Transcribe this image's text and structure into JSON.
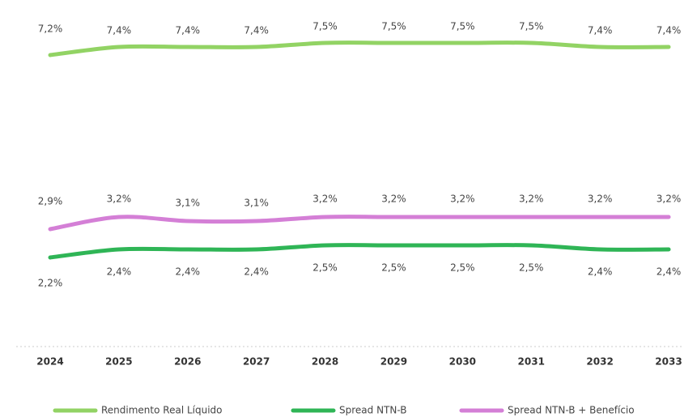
{
  "chart_data": {
    "type": "line",
    "categories": [
      "2024",
      "2025",
      "2026",
      "2027",
      "2028",
      "2029",
      "2030",
      "2031",
      "2032",
      "2033"
    ],
    "series": [
      {
        "name": "Rendimento Real Líquido",
        "color": "#92d364",
        "values": [
          7.2,
          7.4,
          7.4,
          7.4,
          7.5,
          7.5,
          7.5,
          7.5,
          7.4,
          7.4
        ],
        "value_labels": [
          "7,2%",
          "7,4%",
          "7,4%",
          "7,4%",
          "7,5%",
          "7,5%",
          "7,5%",
          "7,5%",
          "7,4%",
          "7,4%"
        ]
      },
      {
        "name": "Spread NTN-B",
        "color": "#2fb556",
        "values": [
          2.2,
          2.4,
          2.4,
          2.4,
          2.5,
          2.5,
          2.5,
          2.5,
          2.4,
          2.4
        ],
        "value_labels": [
          "2,2%",
          "2,4%",
          "2,4%",
          "2,4%",
          "2,5%",
          "2,5%",
          "2,5%",
          "2,5%",
          "2,4%",
          "2,4%"
        ]
      },
      {
        "name": "Spread NTN-B + Benefício",
        "color": "#d47fd6",
        "values": [
          2.9,
          3.2,
          3.1,
          3.1,
          3.2,
          3.2,
          3.2,
          3.2,
          3.2,
          3.2
        ],
        "value_labels": [
          "2,9%",
          "3,2%",
          "3,1%",
          "3,1%",
          "3,2%",
          "3,2%",
          "3,2%",
          "3,2%",
          "3,2%",
          "3,2%"
        ]
      }
    ],
    "ylim": [
      0,
      8.5
    ]
  }
}
